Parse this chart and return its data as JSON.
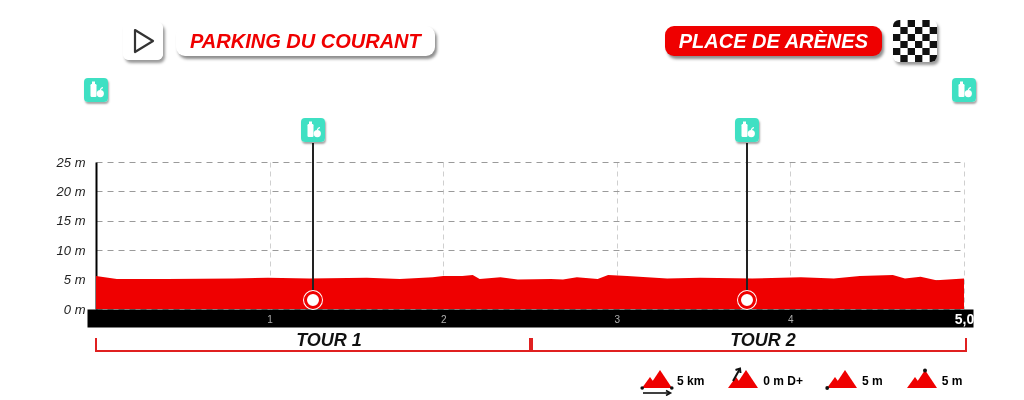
{
  "chart_data": {
    "type": "area",
    "x": [
      0,
      0.12,
      0.41,
      0.79,
      0.99,
      1.23,
      1.56,
      1.75,
      1.94,
      2.0,
      2.11,
      2.17,
      2.21,
      2.33,
      2.43,
      2.62,
      2.69,
      2.77,
      2.89,
      2.95,
      3.06,
      3.29,
      3.48,
      3.78,
      4.06,
      4.25,
      4.4,
      4.59,
      4.66,
      4.75,
      4.84,
      5.0
    ],
    "values": [
      5.6,
      5.1,
      5.1,
      5.2,
      5.3,
      5.2,
      5.3,
      5.1,
      5.4,
      5.6,
      5.6,
      5.8,
      5.1,
      5.4,
      5.0,
      5.1,
      5.0,
      5.4,
      5.1,
      5.8,
      5.6,
      5.2,
      5.3,
      5.2,
      5.4,
      5.2,
      5.6,
      5.8,
      5.2,
      5.5,
      4.9,
      5.2
    ],
    "color": "#ef0000",
    "xlim": [
      0,
      5
    ],
    "xticks": [
      1,
      2,
      3,
      4,
      {
        "value": 5,
        "label": "5,0"
      }
    ],
    "ylim": [
      0,
      25
    ],
    "yticks": [
      {
        "value": 0,
        "label": "0 m"
      },
      {
        "value": 5,
        "label": "5 m"
      },
      {
        "value": 10,
        "label": "10 m"
      },
      {
        "value": 15,
        "label": "15 m"
      },
      {
        "value": 20,
        "label": "20 m"
      },
      {
        "value": 25,
        "label": "25 m"
      }
    ],
    "grid": true,
    "ref_lines": [
      {
        "axis": "x",
        "value": 1.25,
        "color": "#222222"
      },
      {
        "axis": "x",
        "value": 3.75,
        "color": "#222222"
      }
    ],
    "annotations": [
      "PARKING DU COURANT",
      "PLACE DE ARÈNES",
      "TOUR 1",
      "TOUR 2",
      "5 km",
      "0 m D+",
      "5 m",
      "5 m"
    ]
  }
}
